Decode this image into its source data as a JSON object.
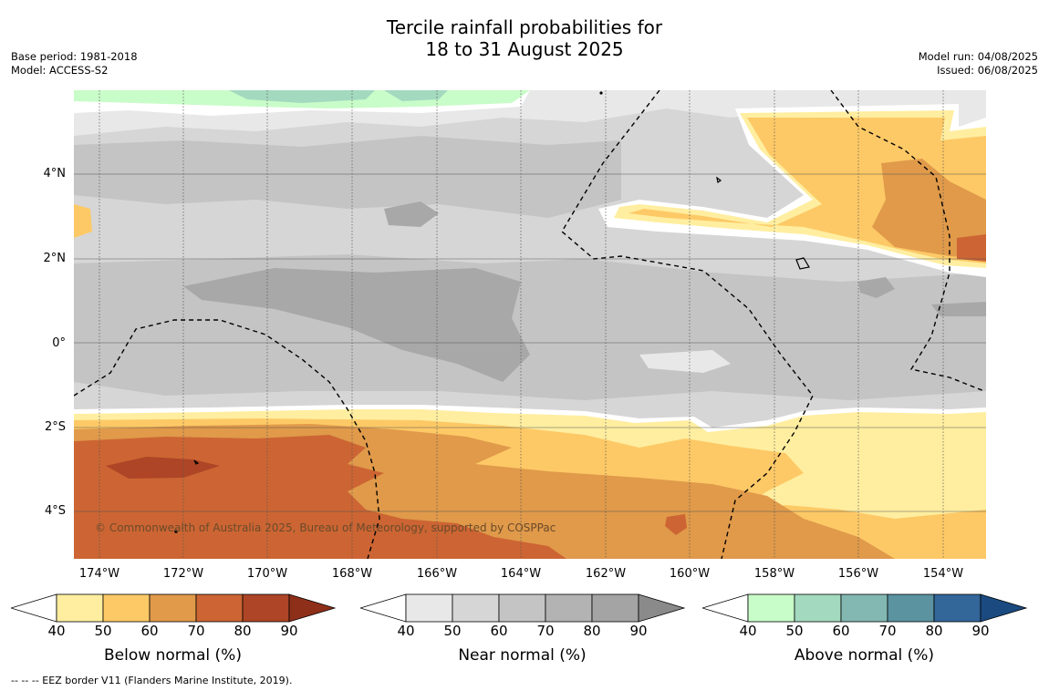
{
  "title": {
    "line1": "Tercile rainfall probabilities for",
    "line2": "18 to 31 August 2025"
  },
  "meta_left": {
    "base_period": "Base period: 1981-2018",
    "model": "Model: ACCESS-S2"
  },
  "meta_right": {
    "model_run": "Model run: 04/08/2025",
    "issued": "Issued: 06/08/2025"
  },
  "map": {
    "lat_labels": [
      "4°N",
      "2°N",
      "0°",
      "2°S",
      "4°S"
    ],
    "lon_labels": [
      "174°W",
      "172°W",
      "170°W",
      "168°W",
      "166°W",
      "164°W",
      "162°W",
      "160°W",
      "158°W",
      "156°W",
      "154°W"
    ],
    "copyright": "© Commonwealth of Australia 2025, Bureau of Meteorology, supported by COSPPac"
  },
  "colorbars": [
    {
      "title": "Below normal (%)",
      "ticks": [
        "40",
        "50",
        "60",
        "70",
        "80",
        "90"
      ],
      "colors": [
        "#ffeea0",
        "#fdc966",
        "#e09a4a",
        "#cc6533",
        "#ad4526",
        "#8e2f1a"
      ]
    },
    {
      "title": "Near normal (%)",
      "ticks": [
        "40",
        "50",
        "60",
        "70",
        "80",
        "90"
      ],
      "colors": [
        "#e8e8e8",
        "#d6d6d6",
        "#c4c4c4",
        "#b3b3b3",
        "#a4a4a4",
        "#8a8a8a"
      ]
    },
    {
      "title": "Above normal (%)",
      "ticks": [
        "40",
        "50",
        "60",
        "70",
        "80",
        "90"
      ],
      "colors": [
        "#c8fcc8",
        "#a3d9bf",
        "#82b8b1",
        "#5b93a0",
        "#336699",
        "#1a4a80"
      ]
    }
  ],
  "footer": "--  --  -- EEZ border V11 (Flanders Marine Institute, 2019)."
}
